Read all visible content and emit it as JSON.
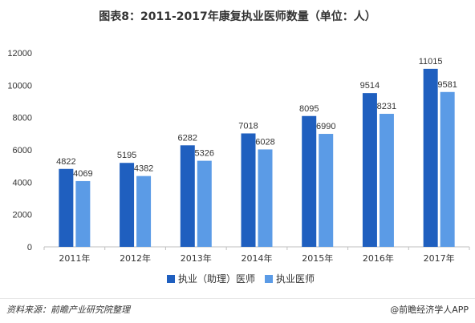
{
  "title": "图表8：2011-2017年康复执业医师数量（单位：人）",
  "footer": {
    "source": "资料来源：前瞻产业研究院整理",
    "brand": "@前瞻经济学人APP"
  },
  "colors": {
    "series1": "#1f5fbf",
    "series2": "#5b9be6",
    "axis": "#bfbfbf",
    "text": "#333333"
  },
  "chart_data": {
    "type": "bar",
    "categories": [
      "2011年",
      "2012年",
      "2013年",
      "2014年",
      "2015年",
      "2016年",
      "2017年"
    ],
    "series": [
      {
        "name": "执业（助理）医师",
        "values": [
          4822,
          5195,
          6282,
          7018,
          8095,
          9514,
          11015
        ]
      },
      {
        "name": "执业医师",
        "values": [
          4069,
          4382,
          5326,
          6028,
          6990,
          8231,
          9581
        ]
      }
    ],
    "ylim": [
      0,
      12000
    ],
    "yticks": [
      0,
      2000,
      4000,
      6000,
      8000,
      10000,
      12000
    ],
    "grid": false,
    "legend_position": "bottom"
  }
}
